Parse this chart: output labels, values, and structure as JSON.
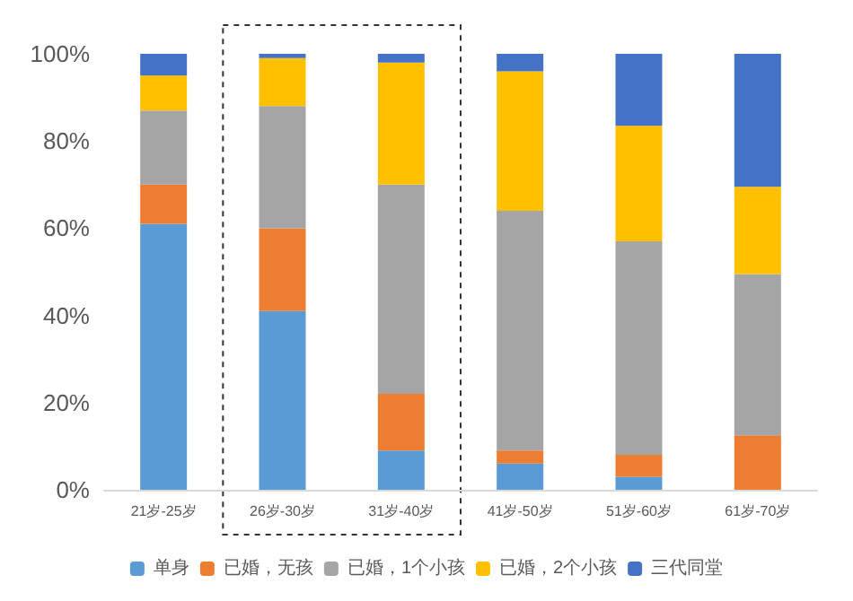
{
  "chart_data": {
    "type": "bar",
    "stacked": true,
    "categories": [
      "21岁-25岁",
      "26岁-30岁",
      "31岁-40岁",
      "41岁-50岁",
      "51岁-60岁",
      "61岁-70岁"
    ],
    "series": [
      {
        "name": "单身",
        "color": "#5b9bd5",
        "values": [
          61,
          41,
          9,
          6,
          3,
          0
        ]
      },
      {
        "name": "已婚，无孩",
        "color": "#ed7d31",
        "values": [
          9,
          19,
          13,
          3,
          5,
          12.5
        ]
      },
      {
        "name": "已婚，1个小孩",
        "color": "#a5a5a5",
        "values": [
          17,
          28,
          48,
          55,
          49,
          37
        ]
      },
      {
        "name": "已婚，2个小孩",
        "color": "#ffc000",
        "values": [
          8,
          11,
          28,
          32,
          26.5,
          20
        ]
      },
      {
        "name": "三代同堂",
        "color": "#4472c4",
        "values": [
          5,
          1,
          2,
          4,
          16.5,
          30.5
        ]
      }
    ],
    "ylim": [
      0,
      100
    ],
    "yticks": [
      {
        "value": 0,
        "label": "0%"
      },
      {
        "value": 20,
        "label": "20%"
      },
      {
        "value": 40,
        "label": "40%"
      },
      {
        "value": 60,
        "label": "60%"
      },
      {
        "value": 80,
        "label": "80%"
      },
      {
        "value": 100,
        "label": "100%"
      }
    ],
    "grid": false,
    "legend": "bottom"
  }
}
